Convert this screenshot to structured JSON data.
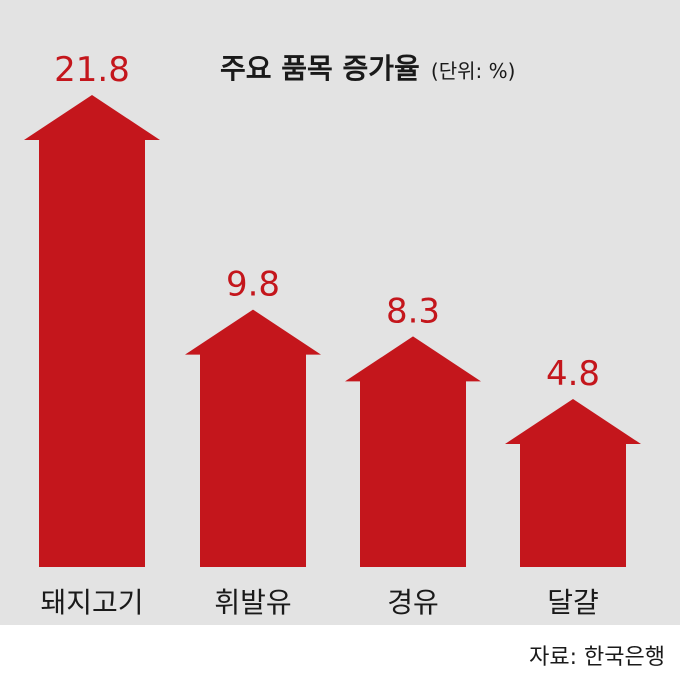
{
  "chart_data": {
    "type": "bar",
    "title": "주요 품목 증가율",
    "unit": "(단위: %)",
    "categories": [
      "돼지고기",
      "휘발유",
      "경유",
      "달걀"
    ],
    "values": [
      21.8,
      9.8,
      8.3,
      4.8
    ],
    "value_labels": [
      "21.8",
      "9.8",
      "8.3",
      "4.8"
    ],
    "bar_color": "#c4161c",
    "background": "#e3e3e3",
    "mark_shape": "up-arrow",
    "source": "자료: 한국은행"
  }
}
